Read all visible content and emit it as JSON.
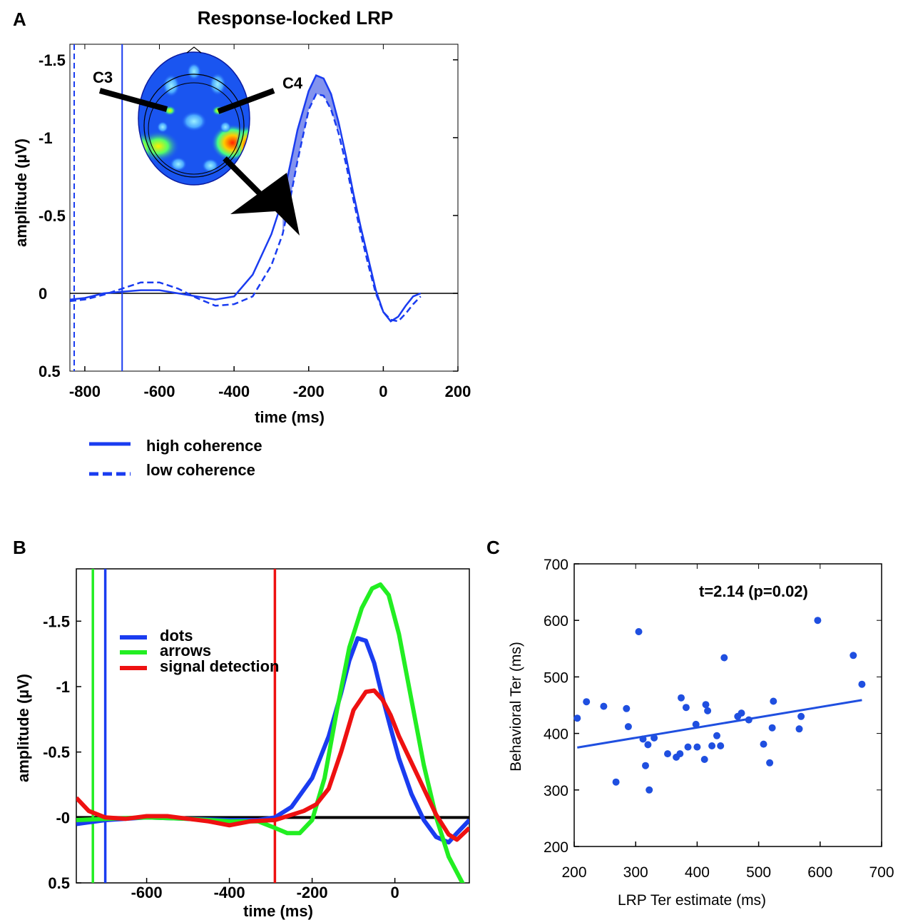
{
  "panels": {
    "a": {
      "letter": "A",
      "title": "Response-locked LRP",
      "xlabel": "time (ms)",
      "ylabel": "amplitude (µV)",
      "electrodes": [
        "C3",
        "C4"
      ]
    },
    "b": {
      "letter": "B",
      "xlabel": "time (ms)",
      "ylabel": "amplitude (µV)"
    },
    "c": {
      "letter": "C",
      "xlabel": "LRP Ter estimate (ms)",
      "ylabel": "Behavioral Ter (ms)",
      "annotation": "t=2.14 (p=0.02)"
    }
  },
  "colors": {
    "blue": "#1a3cf0",
    "green": "#22ee22",
    "red": "#ee1111",
    "scatter": "#1f4fe0",
    "head_bg": "#1a55f0"
  },
  "chart_data": [
    {
      "id": "A",
      "type": "line",
      "title": "Response-locked LRP",
      "xlabel": "time (ms)",
      "ylabel": "amplitude (µV)",
      "xlim": [
        -840,
        200
      ],
      "ylim": [
        0.5,
        -1.6
      ],
      "y_inverted": true,
      "xticks": [
        -800,
        -600,
        -400,
        -200,
        0,
        200
      ],
      "xtick_labels": [
        "-800",
        "-600",
        "-400",
        "-200",
        "0",
        "200"
      ],
      "yticks": [
        0.5,
        0,
        -0.5,
        -1,
        -1.5
      ],
      "ytick_labels": [
        "0.5",
        "0",
        "-0.5",
        "-1",
        "-1.5"
      ],
      "vline_x": -700,
      "series": [
        {
          "name": "high coherence",
          "style": "solid",
          "x": [
            -840,
            -800,
            -750,
            -700,
            -650,
            -600,
            -550,
            -500,
            -450,
            -400,
            -350,
            -300,
            -270,
            -250,
            -230,
            -200,
            -180,
            -160,
            -140,
            -120,
            -100,
            -80,
            -60,
            -40,
            -20,
            0,
            20,
            40,
            60,
            80,
            100
          ],
          "y": [
            0.04,
            0.03,
            0.0,
            -0.01,
            -0.02,
            -0.02,
            0.0,
            0.02,
            0.04,
            0.02,
            -0.12,
            -0.38,
            -0.6,
            -0.82,
            -1.05,
            -1.3,
            -1.4,
            -1.38,
            -1.28,
            -1.1,
            -0.88,
            -0.64,
            -0.42,
            -0.22,
            -0.02,
            0.12,
            0.18,
            0.15,
            0.08,
            0.02,
            0.0
          ]
        },
        {
          "name": "low coherence",
          "style": "dashed",
          "x": [
            -840,
            -800,
            -750,
            -700,
            -650,
            -600,
            -550,
            -500,
            -450,
            -400,
            -350,
            -300,
            -270,
            -250,
            -230,
            -200,
            -180,
            -160,
            -140,
            -120,
            -100,
            -80,
            -60,
            -40,
            -20,
            0,
            20,
            40,
            60,
            80,
            100
          ],
          "y": [
            0.05,
            0.04,
            0.01,
            -0.03,
            -0.07,
            -0.07,
            -0.03,
            0.03,
            0.08,
            0.07,
            0.02,
            -0.18,
            -0.38,
            -0.6,
            -0.85,
            -1.18,
            -1.28,
            -1.27,
            -1.18,
            -1.03,
            -0.83,
            -0.6,
            -0.38,
            -0.18,
            0.0,
            0.12,
            0.17,
            0.18,
            0.13,
            0.07,
            0.02
          ]
        }
      ],
      "legend": [
        "high coherence",
        "low coherence"
      ]
    },
    {
      "id": "B",
      "type": "line",
      "xlabel": "time (ms)",
      "ylabel": "amplitude (µV)",
      "xlim": [
        -770,
        180
      ],
      "ylim": [
        0.5,
        -1.9
      ],
      "y_inverted": true,
      "xticks": [
        -600,
        -400,
        -200,
        0
      ],
      "xtick_labels": [
        "-600",
        "-400",
        "-200",
        "0"
      ],
      "yticks": [
        0.5,
        0,
        -0.5,
        -1,
        -1.5
      ],
      "ytick_labels": [
        "0.5",
        "-0",
        "-0.5",
        "-1",
        "-1.5"
      ],
      "vlines": [
        {
          "color": "green",
          "x": -730
        },
        {
          "color": "blue",
          "x": -700
        },
        {
          "color": "red",
          "x": -290
        }
      ],
      "series": [
        {
          "name": "dots",
          "color": "blue",
          "x": [
            -770,
            -700,
            -600,
            -500,
            -400,
            -330,
            -290,
            -250,
            -200,
            -160,
            -130,
            -110,
            -90,
            -70,
            -50,
            -30,
            -10,
            10,
            40,
            70,
            100,
            130,
            150,
            180
          ],
          "y": [
            0.05,
            0.02,
            0.0,
            0.01,
            0.02,
            0.02,
            0.0,
            -0.08,
            -0.3,
            -0.62,
            -0.95,
            -1.2,
            -1.37,
            -1.35,
            -1.18,
            -0.92,
            -0.68,
            -0.45,
            -0.18,
            0.02,
            0.15,
            0.19,
            0.12,
            0.02
          ]
        },
        {
          "name": "arrows",
          "color": "green",
          "x": [
            -770,
            -700,
            -600,
            -500,
            -400,
            -330,
            -290,
            -260,
            -230,
            -200,
            -170,
            -140,
            -110,
            -80,
            -55,
            -35,
            -15,
            10,
            40,
            70,
            100,
            130,
            160,
            180
          ],
          "y": [
            0.02,
            0.01,
            0.0,
            0.01,
            0.03,
            0.03,
            0.08,
            0.12,
            0.12,
            0.02,
            -0.3,
            -0.82,
            -1.3,
            -1.6,
            -1.75,
            -1.78,
            -1.7,
            -1.4,
            -0.9,
            -0.4,
            0.0,
            0.3,
            0.48,
            0.6
          ]
        },
        {
          "name": "signal detection",
          "color": "red",
          "x": [
            -770,
            -740,
            -700,
            -650,
            -600,
            -550,
            -500,
            -450,
            -400,
            -350,
            -290,
            -250,
            -220,
            -190,
            -160,
            -130,
            -100,
            -70,
            -50,
            -30,
            -10,
            10,
            40,
            70,
            100,
            130,
            150,
            180
          ],
          "y": [
            -0.15,
            -0.05,
            0.0,
            0.01,
            -0.01,
            -0.01,
            0.01,
            0.03,
            0.06,
            0.03,
            0.02,
            -0.02,
            -0.05,
            -0.1,
            -0.22,
            -0.5,
            -0.82,
            -0.96,
            -0.97,
            -0.9,
            -0.78,
            -0.62,
            -0.42,
            -0.22,
            -0.02,
            0.13,
            0.17,
            0.08
          ]
        }
      ],
      "legend": [
        "dots",
        "arrows",
        "signal detection"
      ]
    },
    {
      "id": "C",
      "type": "scatter",
      "xlabel": "LRP Ter estimate (ms)",
      "ylabel": "Behavioral Ter (ms)",
      "xlim": [
        200,
        700
      ],
      "ylim": [
        200,
        700
      ],
      "xticks": [
        200,
        300,
        400,
        500,
        600,
        700
      ],
      "yticks": [
        200,
        300,
        400,
        500,
        600,
        700
      ],
      "annotation": "t=2.14 (p=0.02)",
      "points": [
        [
          205,
          427
        ],
        [
          220,
          456
        ],
        [
          248,
          448
        ],
        [
          268,
          314
        ],
        [
          285,
          444
        ],
        [
          288,
          412
        ],
        [
          305,
          580
        ],
        [
          312,
          390
        ],
        [
          316,
          343
        ],
        [
          320,
          380
        ],
        [
          322,
          300
        ],
        [
          330,
          392
        ],
        [
          352,
          364
        ],
        [
          366,
          358
        ],
        [
          372,
          364
        ],
        [
          374,
          463
        ],
        [
          382,
          446
        ],
        [
          385,
          376
        ],
        [
          398,
          416
        ],
        [
          400,
          376
        ],
        [
          412,
          354
        ],
        [
          414,
          451
        ],
        [
          417,
          440
        ],
        [
          424,
          378
        ],
        [
          432,
          396
        ],
        [
          438,
          378
        ],
        [
          444,
          534
        ],
        [
          466,
          430
        ],
        [
          472,
          436
        ],
        [
          484,
          424
        ],
        [
          508,
          381
        ],
        [
          518,
          348
        ],
        [
          522,
          410
        ],
        [
          524,
          457
        ],
        [
          566,
          408
        ],
        [
          569,
          430
        ],
        [
          596,
          600
        ],
        [
          654,
          538
        ],
        [
          668,
          487
        ]
      ],
      "fit_line": {
        "x": [
          205,
          668
        ],
        "y": [
          375,
          459
        ]
      }
    }
  ]
}
